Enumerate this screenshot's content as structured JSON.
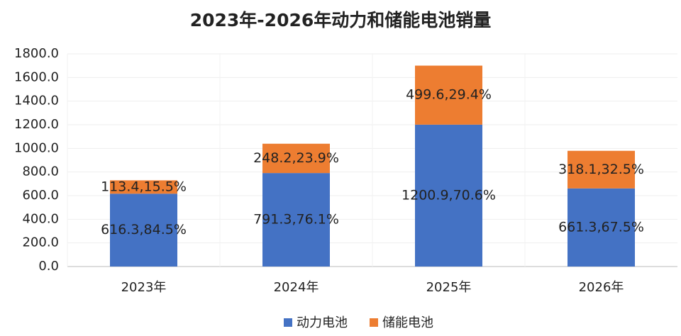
{
  "chart_data": {
    "type": "stacked_bar",
    "title": "2023年-2026年动力和储能电池销量",
    "categories": [
      "2023年",
      "2024年",
      "2025年",
      "2026年"
    ],
    "series": [
      {
        "name": "动力电池",
        "color": "#4472c4",
        "values": [
          616.3,
          791.3,
          1200.9,
          661.3
        ],
        "value_labels": [
          "616.3,84.5%",
          "791.3,76.1%",
          "1200.9,70.6%",
          "661.3,67.5%"
        ]
      },
      {
        "name": "储能电池",
        "color": "#ed7d31",
        "values": [
          113.4,
          248.2,
          499.6,
          318.1
        ],
        "value_labels": [
          "113.4,15.5%",
          "248.2,23.9%",
          "499.6,29.4%",
          "318.1,32.5%"
        ]
      }
    ],
    "ylim": [
      0,
      1800
    ],
    "yticks": [
      {
        "value": 0,
        "label": "0.0"
      },
      {
        "value": 200,
        "label": "200.0"
      },
      {
        "value": 400,
        "label": "400.0"
      },
      {
        "value": 600,
        "label": "600.0"
      },
      {
        "value": 800,
        "label": "800.0"
      },
      {
        "value": 1000,
        "label": "1000.0"
      },
      {
        "value": 1200,
        "label": "1200.0"
      },
      {
        "value": 1400,
        "label": "1400.0"
      },
      {
        "value": 1600,
        "label": "1600.0"
      },
      {
        "value": 1800,
        "label": "1800.0"
      }
    ],
    "grid": true,
    "legend": "bottom"
  }
}
